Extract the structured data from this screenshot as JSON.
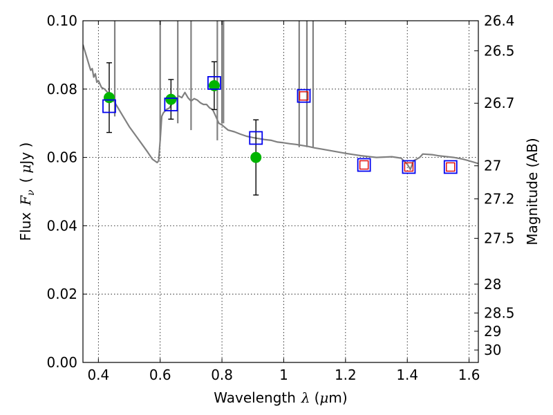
{
  "chart_data": {
    "type": "scatter",
    "xlabel": "Wavelength",
    "xlabel_symbol": "λ",
    "xlabel_unit": "(μm)",
    "xlabel_unit_prefix": "(",
    "xlabel_unit_mu": "μ",
    "xlabel_unit_suffix": "m)",
    "ylabel_prefix": "Flux",
    "ylabel_symbol": "F",
    "ylabel_subscript": "ν",
    "ylabel_unit_open": "(",
    "ylabel_unit_mu": "μ",
    "ylabel_unit_rest": "Jy )",
    "y2label": "Magnitude (AB)",
    "xlim": [
      0.35,
      1.63
    ],
    "ylim": [
      0.0,
      0.1
    ],
    "grid": true,
    "x_ticks": [
      {
        "value": 0.4,
        "label": "0.4"
      },
      {
        "value": 0.6,
        "label": "0.6"
      },
      {
        "value": 0.8,
        "label": "0.8"
      },
      {
        "value": 1.0,
        "label": "1"
      },
      {
        "value": 1.2,
        "label": "1.2"
      },
      {
        "value": 1.4,
        "label": "1.4"
      },
      {
        "value": 1.6,
        "label": "1.6"
      }
    ],
    "y_ticks": [
      {
        "value": 0.0,
        "label": "0.00"
      },
      {
        "value": 0.02,
        "label": "0.02"
      },
      {
        "value": 0.04,
        "label": "0.04"
      },
      {
        "value": 0.06,
        "label": "0.06"
      },
      {
        "value": 0.08,
        "label": "0.08"
      },
      {
        "value": 0.1,
        "label": "0.10"
      }
    ],
    "mag_ticks": [
      {
        "value": 26.4,
        "label": "26.4"
      },
      {
        "value": 26.5,
        "label": "26.5"
      },
      {
        "value": 26.7,
        "label": "26.7"
      },
      {
        "value": 27.0,
        "label": "27"
      },
      {
        "value": 27.2,
        "label": "27.2"
      },
      {
        "value": 27.5,
        "label": "27.5"
      },
      {
        "value": 28.0,
        "label": "28"
      },
      {
        "value": 28.5,
        "label": "28.5"
      },
      {
        "value": 29.0,
        "label": "29"
      },
      {
        "value": 30.0,
        "label": "30"
      }
    ],
    "observed": [
      {
        "x": 0.435,
        "y": 0.0775,
        "yerr": 0.0102
      },
      {
        "x": 0.635,
        "y": 0.077,
        "yerr": 0.0058
      },
      {
        "x": 0.775,
        "y": 0.081,
        "yerr": 0.007
      },
      {
        "x": 0.91,
        "y": 0.06,
        "yerr": 0.011
      }
    ],
    "model_boxes_blue": [
      {
        "x": 0.435,
        "y": 0.075
      },
      {
        "x": 0.635,
        "y": 0.0755
      },
      {
        "x": 0.775,
        "y": 0.0818
      },
      {
        "x": 0.91,
        "y": 0.0657
      },
      {
        "x": 1.065,
        "y": 0.078
      },
      {
        "x": 1.26,
        "y": 0.0578
      },
      {
        "x": 1.405,
        "y": 0.0572
      },
      {
        "x": 1.54,
        "y": 0.0572
      }
    ],
    "model_boxes_red": [
      {
        "x": 1.065,
        "y": 0.078
      },
      {
        "x": 1.26,
        "y": 0.0578
      },
      {
        "x": 1.405,
        "y": 0.0572
      },
      {
        "x": 1.54,
        "y": 0.0572
      }
    ],
    "sed_curve": [
      [
        0.35,
        0.093
      ],
      [
        0.36,
        0.09
      ],
      [
        0.37,
        0.087
      ],
      [
        0.375,
        0.0855
      ],
      [
        0.38,
        0.086
      ],
      [
        0.385,
        0.0835
      ],
      [
        0.39,
        0.0845
      ],
      [
        0.395,
        0.082
      ],
      [
        0.4,
        0.0825
      ],
      [
        0.41,
        0.0805
      ],
      [
        0.42,
        0.08
      ],
      [
        0.43,
        0.079
      ],
      [
        0.44,
        0.078
      ],
      [
        0.45,
        0.0765
      ],
      [
        0.46,
        0.075
      ],
      [
        0.48,
        0.072
      ],
      [
        0.5,
        0.069
      ],
      [
        0.52,
        0.0665
      ],
      [
        0.54,
        0.064
      ],
      [
        0.56,
        0.0615
      ],
      [
        0.575,
        0.0595
      ],
      [
        0.59,
        0.0585
      ],
      [
        0.595,
        0.059
      ],
      [
        0.6,
        0.065
      ],
      [
        0.605,
        0.072
      ],
      [
        0.61,
        0.073
      ],
      [
        0.62,
        0.074
      ],
      [
        0.63,
        0.0745
      ],
      [
        0.64,
        0.076
      ],
      [
        0.65,
        0.077
      ],
      [
        0.66,
        0.078
      ],
      [
        0.67,
        0.0775
      ],
      [
        0.68,
        0.079
      ],
      [
        0.69,
        0.0775
      ],
      [
        0.7,
        0.0765
      ],
      [
        0.71,
        0.0772
      ],
      [
        0.72,
        0.0768
      ],
      [
        0.73,
        0.076
      ],
      [
        0.74,
        0.0755
      ],
      [
        0.75,
        0.0755
      ],
      [
        0.76,
        0.0745
      ],
      [
        0.77,
        0.074
      ],
      [
        0.78,
        0.072
      ],
      [
        0.79,
        0.07
      ],
      [
        0.8,
        0.0695
      ],
      [
        0.82,
        0.068
      ],
      [
        0.84,
        0.0675
      ],
      [
        0.86,
        0.0668
      ],
      [
        0.88,
        0.0662
      ],
      [
        0.9,
        0.0658
      ],
      [
        0.92,
        0.0655
      ],
      [
        0.94,
        0.0652
      ],
      [
        0.96,
        0.065
      ],
      [
        0.98,
        0.0645
      ],
      [
        1.0,
        0.0643
      ],
      [
        1.02,
        0.064
      ],
      [
        1.04,
        0.0638
      ],
      [
        1.06,
        0.0635
      ],
      [
        1.08,
        0.0632
      ],
      [
        1.1,
        0.0628
      ],
      [
        1.12,
        0.0625
      ],
      [
        1.15,
        0.062
      ],
      [
        1.2,
        0.0612
      ],
      [
        1.25,
        0.0605
      ],
      [
        1.3,
        0.06
      ],
      [
        1.35,
        0.0602
      ],
      [
        1.38,
        0.0598
      ],
      [
        1.4,
        0.058
      ],
      [
        1.41,
        0.0565
      ],
      [
        1.42,
        0.059
      ],
      [
        1.43,
        0.0595
      ],
      [
        1.44,
        0.06
      ],
      [
        1.45,
        0.061
      ],
      [
        1.48,
        0.0608
      ],
      [
        1.5,
        0.0605
      ],
      [
        1.55,
        0.06
      ],
      [
        1.58,
        0.0595
      ],
      [
        1.6,
        0.059
      ],
      [
        1.63,
        0.0582
      ]
    ],
    "sed_spikes": [
      {
        "x": 0.453,
        "top": 0.1,
        "bottom": 0.072
      },
      {
        "x": 0.6,
        "top": 0.1,
        "bottom": 0.065
      },
      {
        "x": 0.657,
        "top": 0.1,
        "bottom": 0.07
      },
      {
        "x": 0.7,
        "top": 0.1,
        "bottom": 0.068
      },
      {
        "x": 0.785,
        "top": 0.1,
        "bottom": 0.065
      },
      {
        "x": 0.8,
        "top": 0.1,
        "bottom": 0.07
      },
      {
        "x": 0.805,
        "top": 0.1,
        "bottom": 0.07
      },
      {
        "x": 1.05,
        "top": 0.1,
        "bottom": 0.063
      },
      {
        "x": 1.075,
        "top": 0.1,
        "bottom": 0.063
      },
      {
        "x": 1.095,
        "top": 0.1,
        "bottom": 0.063
      }
    ],
    "colors": {
      "curve": "#808080",
      "observed": "#00b400",
      "box_blue": "#0000ee",
      "box_red": "#dd0000",
      "errorbar": "#000000",
      "grid": "#000000"
    }
  }
}
